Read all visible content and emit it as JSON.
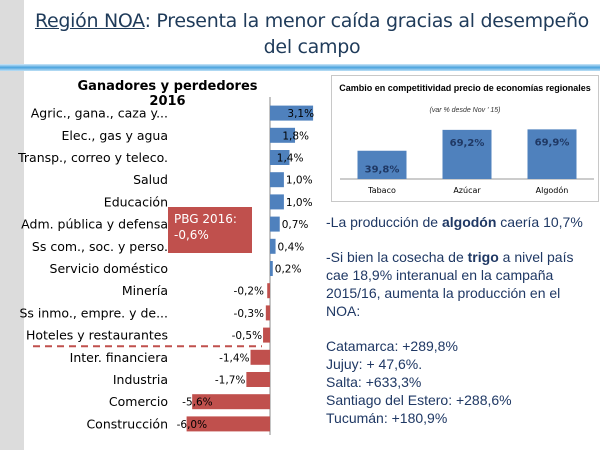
{
  "title": {
    "highlight": "Región NOA",
    "rest": ": Presenta la menor caída gracias al desempeño del campo"
  },
  "colors": {
    "positive": "#4f81bd",
    "negative": "#c0504d",
    "text": "#1f3864"
  },
  "pbg_box": {
    "line1": "PBG 2016:",
    "line2": "-0,6%"
  },
  "chart_data": [
    {
      "type": "bar",
      "orientation": "horizontal",
      "title": "Ganadores y perdedores 2016",
      "categories": [
        "Agric., gana., caza y...",
        "Elec., gas y agua",
        "Transp., correo y teleco.",
        "Salud",
        "Educación",
        "Adm. pública y defensa",
        "Ss com., soc. y perso.",
        "Servicio doméstico",
        "Minería",
        "Ss inmo., empre. y de...",
        "Hoteles y restaurantes",
        "Inter. financiera",
        "Industria",
        "Comercio",
        "Construcción"
      ],
      "values": [
        3.1,
        1.8,
        1.4,
        1.0,
        1.0,
        0.7,
        0.4,
        0.2,
        -0.2,
        -0.3,
        -0.5,
        -1.4,
        -1.7,
        -5.6,
        -6.0
      ],
      "labels": [
        "3,1%",
        "1,8%",
        "1,4%",
        "1,0%",
        "1,0%",
        "0,7%",
        "0,4%",
        "0,2%",
        "-0,2%",
        "-0,3%",
        "-0,5%",
        "-1,4%",
        "-1,7%",
        "-5,6%",
        "-6,0%"
      ],
      "xlim": [
        -6.0,
        3.1
      ]
    },
    {
      "type": "bar",
      "title": "Cambio en competitividad precio de economías regionales",
      "subtitle": "(var % desde Nov ' 15)",
      "categories": [
        "Tabaco",
        "Azúcar",
        "Algodón"
      ],
      "values": [
        39.8,
        69.2,
        69.9
      ],
      "labels": [
        "39,8%",
        "69,2%",
        "69,9%"
      ],
      "ylim": [
        0,
        75
      ]
    }
  ],
  "notes": {
    "p1": [
      "-La producción de ",
      "algodón",
      " caería 10,7%"
    ],
    "p2": [
      "-Si bien la cosecha de ",
      "trigo",
      " a nivel país cae 18,9% interanual en la campaña 2015/16, aumenta la producción en el NOA:"
    ],
    "list": [
      "Catamarca: +289,8%",
      "Jujuy: + 47,6%.",
      "Salta: +633,3%",
      "Santiago del Estero: +288,6%",
      "Tucumán: +180,9%"
    ]
  }
}
